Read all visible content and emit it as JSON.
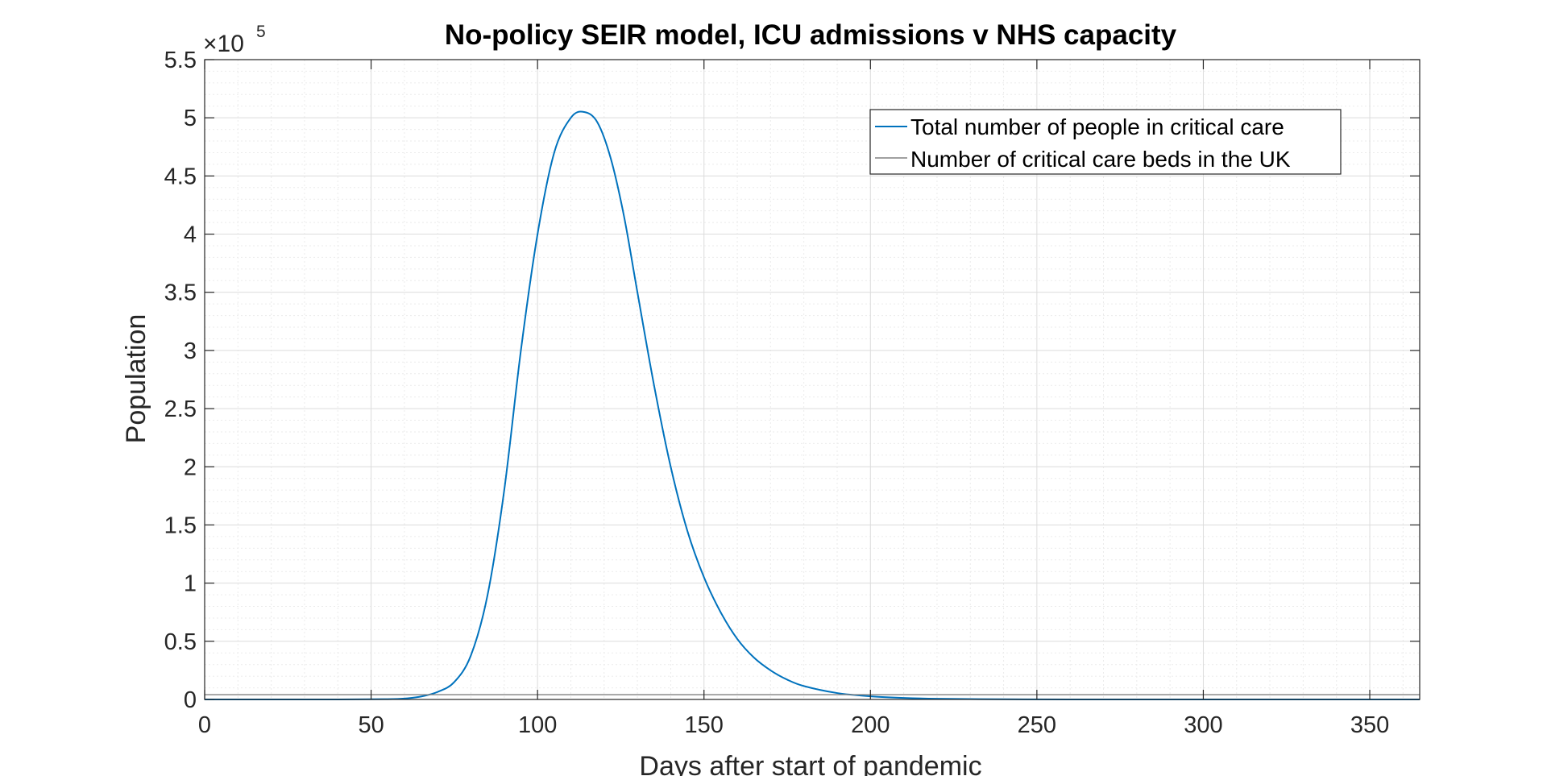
{
  "chart_data": {
    "type": "line",
    "title": "No-policy SEIR model, ICU admissions v NHS capacity",
    "xlabel": "Days after start of pandemic",
    "ylabel": "Population",
    "xlim": [
      0,
      365
    ],
    "ylim": [
      0,
      550000
    ],
    "x_ticks": [
      0,
      50,
      100,
      150,
      200,
      250,
      300,
      350
    ],
    "x_tick_labels": [
      "0",
      "50",
      "100",
      "150",
      "200",
      "250",
      "300",
      "350"
    ],
    "y_ticks": [
      0,
      50000,
      100000,
      150000,
      200000,
      250000,
      300000,
      350000,
      400000,
      450000,
      500000,
      550000
    ],
    "y_tick_labels": [
      "0",
      "0.5",
      "1",
      "1.5",
      "2",
      "2.5",
      "3",
      "3.5",
      "4",
      "4.5",
      "5",
      "5.5"
    ],
    "y_exponent": {
      "multiplier": "×10",
      "power": "5"
    },
    "grid": true,
    "minor_grid": true,
    "legend_placement": "top-right",
    "series": [
      {
        "name": "Total number of people in critical care",
        "color": "#0072BD",
        "x": [
          0,
          40,
          55,
          60,
          65,
          70,
          75,
          80,
          85,
          90,
          95,
          100,
          105,
          110,
          114,
          118,
          122,
          126,
          130,
          135,
          140,
          145,
          150,
          155,
          160,
          165,
          170,
          175,
          180,
          190,
          200,
          210,
          220,
          240,
          260,
          300,
          365
        ],
        "values": [
          0,
          0,
          300,
          800,
          2500,
          6500,
          15000,
          38000,
          90000,
          180000,
          300000,
          400000,
          470000,
          500000,
          505000,
          496000,
          465000,
          415000,
          350000,
          270000,
          200000,
          145000,
          105000,
          75000,
          52000,
          36000,
          25000,
          17000,
          11500,
          5500,
          2700,
          1300,
          600,
          150,
          40,
          0,
          0
        ]
      },
      {
        "name": "Number of critical care beds in the UK",
        "color": "#808080",
        "x": [
          0,
          365
        ],
        "values": [
          4100,
          4100
        ]
      }
    ]
  }
}
